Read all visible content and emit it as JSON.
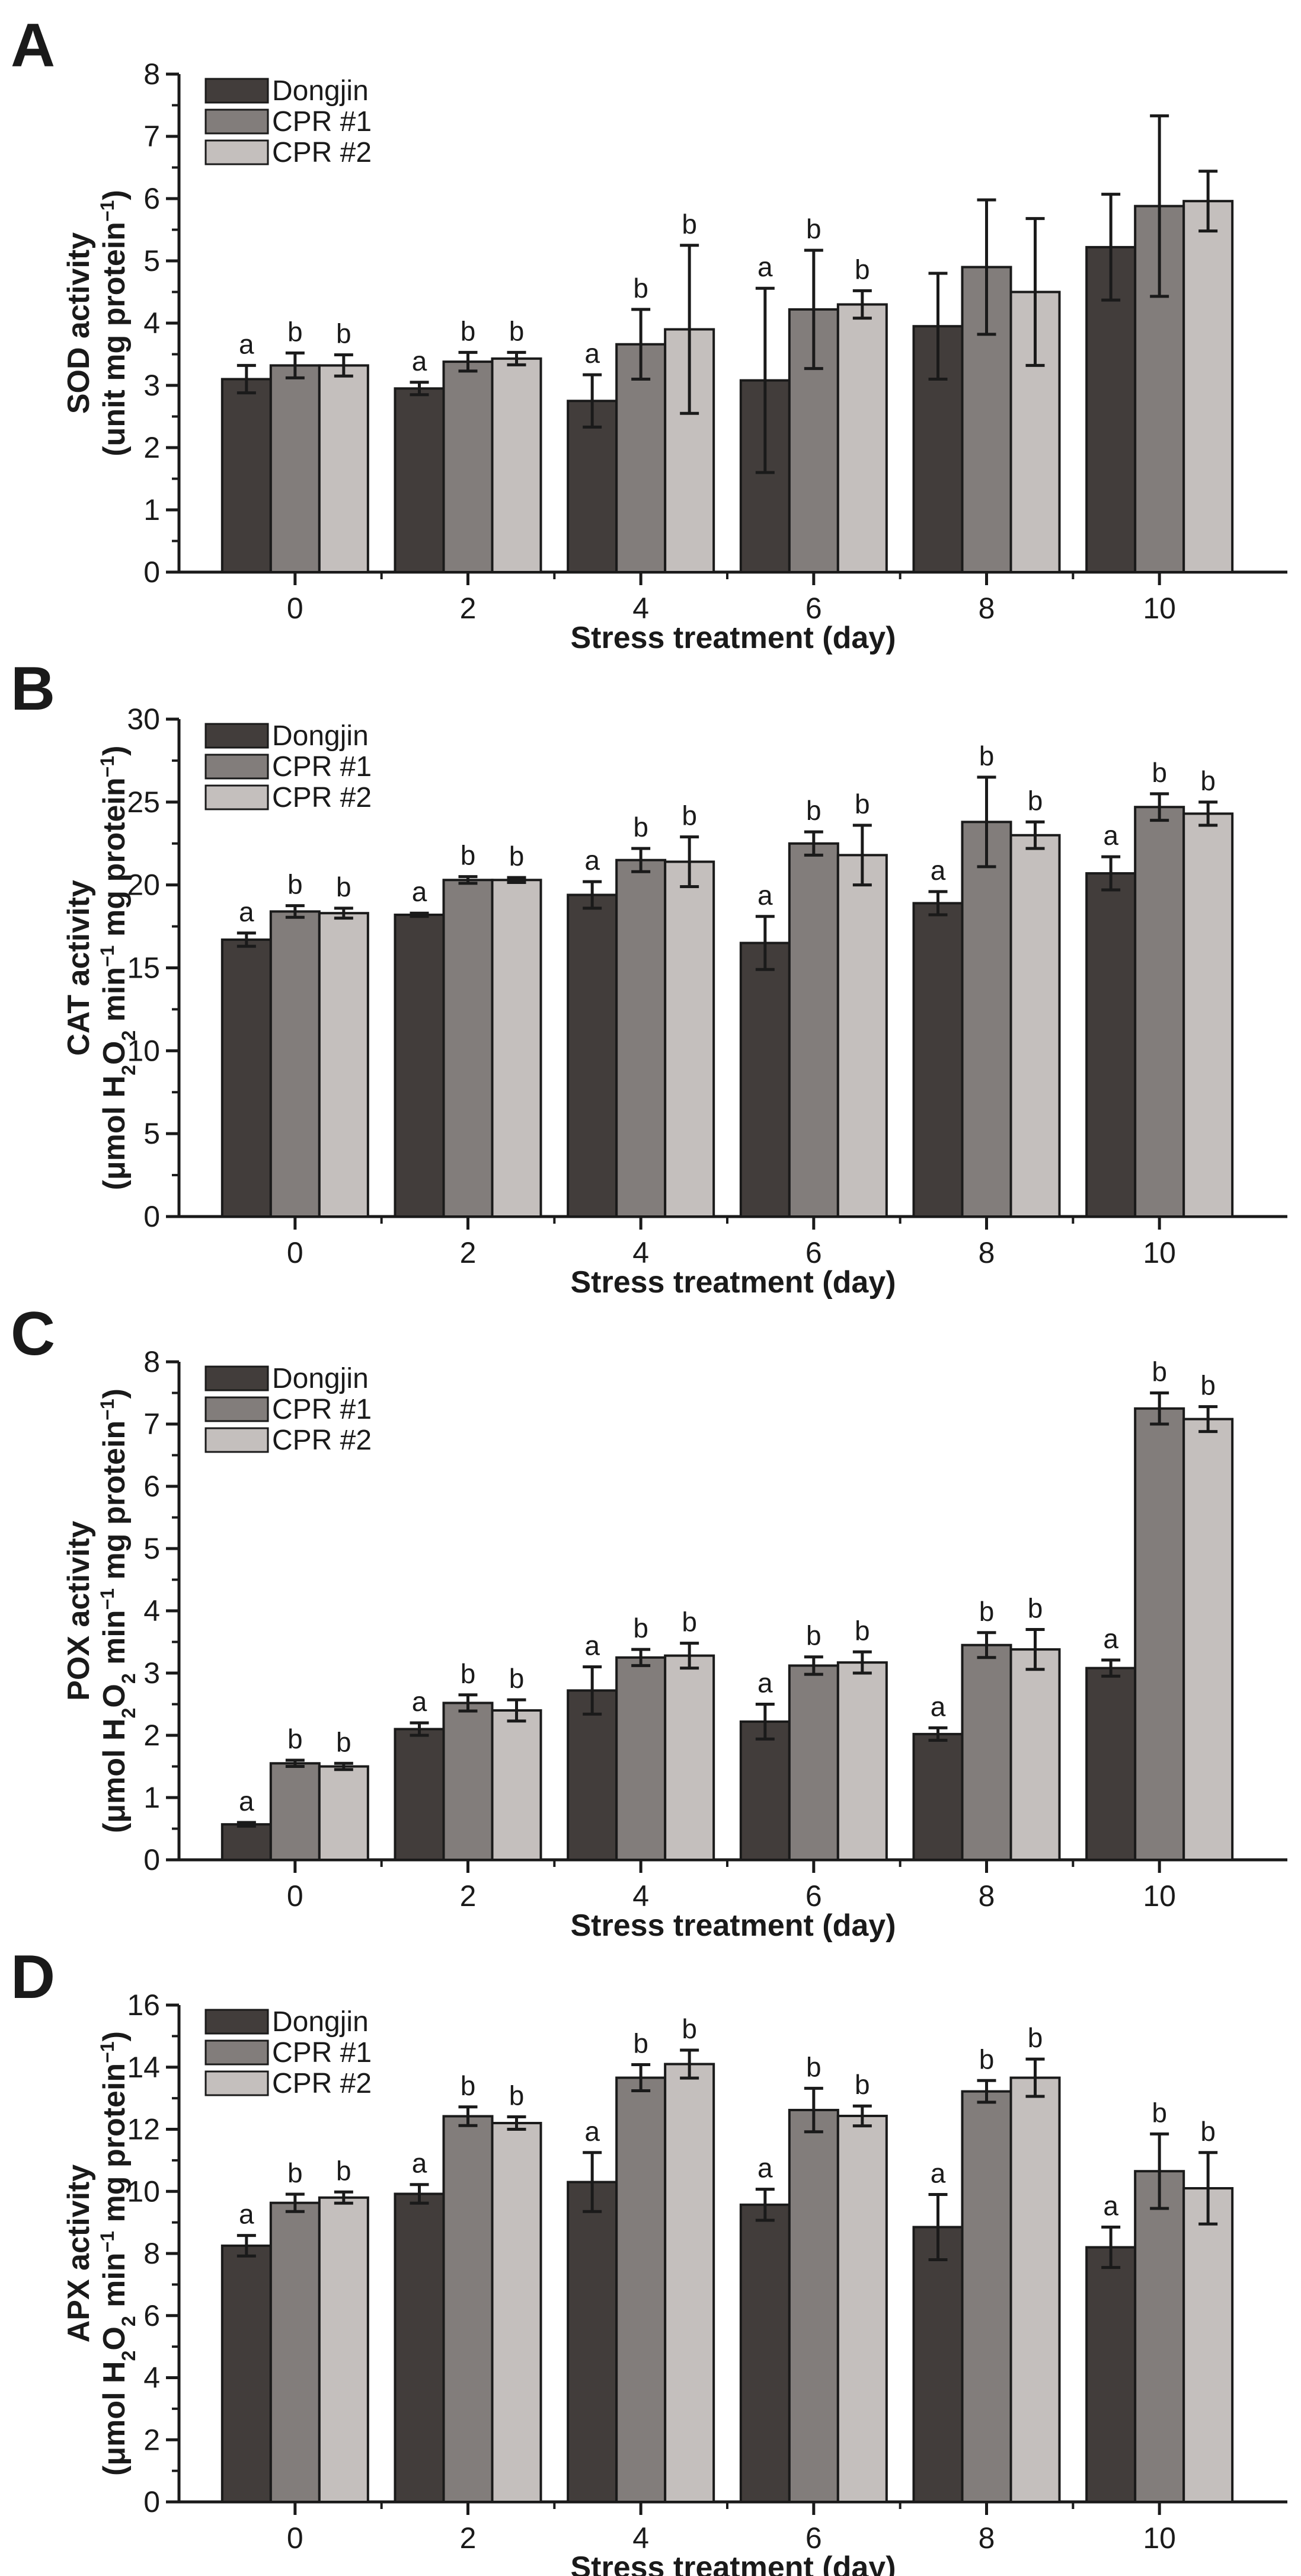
{
  "colors": {
    "Dongjin": "#423d3b",
    "CPR #1": "#827d7b",
    "CPR #2": "#c4bfbd",
    "axis": "#1a1a1a"
  },
  "chart_data": [
    {
      "type": "bar",
      "panel": "A",
      "categories": [
        "0",
        "2",
        "4",
        "6",
        "8",
        "10"
      ],
      "xlabel": "Stress treatment (day)",
      "ylabel_line1": "SOD activity",
      "ylabel_line2": "(unit mg protein",
      "ylabel_line2_sup": "−1",
      "ylabel_line2_end": ")",
      "ylim": [
        0,
        8
      ],
      "yticks": [
        "0",
        "1",
        "2",
        "3",
        "4",
        "5",
        "6",
        "7",
        "8"
      ],
      "series": [
        {
          "name": "Dongjin",
          "values": [
            3.1,
            2.95,
            2.75,
            3.08,
            3.95,
            5.22
          ],
          "errors": [
            0.22,
            0.1,
            0.42,
            1.48,
            0.85,
            0.85
          ],
          "sig": [
            "a",
            "a",
            "a",
            "a",
            "",
            ""
          ]
        },
        {
          "name": "CPR #1",
          "values": [
            3.32,
            3.38,
            3.66,
            4.22,
            4.9,
            5.88
          ],
          "errors": [
            0.2,
            0.15,
            0.56,
            0.95,
            1.08,
            1.45
          ],
          "sig": [
            "b",
            "b",
            "b",
            "b",
            "",
            ""
          ]
        },
        {
          "name": "CPR #2",
          "values": [
            3.32,
            3.43,
            3.9,
            4.3,
            4.5,
            5.96
          ],
          "errors": [
            0.17,
            0.1,
            1.35,
            0.22,
            1.18,
            0.48
          ],
          "sig": [
            "b",
            "b",
            "b",
            "b",
            "",
            ""
          ]
        }
      ]
    },
    {
      "type": "bar",
      "panel": "B",
      "categories": [
        "0",
        "2",
        "4",
        "6",
        "8",
        "10"
      ],
      "xlabel": "Stress treatment (day)",
      "ylabel_line1": "CAT activity",
      "ylabel_line2": "(μmol H",
      "ylabel_line2_sub": "2",
      "ylabel_line2_mid": "O",
      "ylabel_line2_sub2": "2",
      "ylabel_line2_rest": " min",
      "ylabel_line2_sup": "−1",
      "ylabel_line2_end": " mg protein",
      "ylabel_line2_sup2": "−1",
      "ylabel_line2_close": ")",
      "ylim": [
        0,
        30
      ],
      "yticks": [
        "0",
        "5",
        "10",
        "15",
        "20",
        "25",
        "30"
      ],
      "series": [
        {
          "name": "Dongjin",
          "values": [
            16.7,
            18.2,
            19.4,
            16.5,
            18.9,
            20.7
          ],
          "errors": [
            0.4,
            0.1,
            0.8,
            1.6,
            0.7,
            1.0
          ],
          "sig": [
            "a",
            "a",
            "a",
            "a",
            "a",
            "a"
          ]
        },
        {
          "name": "CPR #1",
          "values": [
            18.4,
            20.3,
            21.5,
            22.5,
            23.8,
            24.7
          ],
          "errors": [
            0.35,
            0.2,
            0.7,
            0.7,
            2.7,
            0.8
          ],
          "sig": [
            "b",
            "b",
            "b",
            "b",
            "b",
            "b"
          ]
        },
        {
          "name": "CPR #2",
          "values": [
            18.3,
            20.3,
            21.4,
            21.8,
            23.0,
            24.3
          ],
          "errors": [
            0.3,
            0.15,
            1.5,
            1.8,
            0.8,
            0.7
          ],
          "sig": [
            "b",
            "b",
            "b",
            "b",
            "b",
            "b"
          ]
        }
      ]
    },
    {
      "type": "bar",
      "panel": "C",
      "categories": [
        "0",
        "2",
        "4",
        "6",
        "8",
        "10"
      ],
      "xlabel": "Stress treatment (day)",
      "ylabel_line1": "POX activity",
      "ylabel_line2": "(μmol H",
      "ylabel_line2_sub": "2",
      "ylabel_line2_mid": "O",
      "ylabel_line2_sub2": "2",
      "ylabel_line2_rest": " min",
      "ylabel_line2_sup": "−1",
      "ylabel_line2_end": " mg protein",
      "ylabel_line2_sup2": "−1",
      "ylabel_line2_close": ")",
      "ylim": [
        0,
        8
      ],
      "yticks": [
        "0",
        "1",
        "2",
        "3",
        "4",
        "5",
        "6",
        "7",
        "8"
      ],
      "series": [
        {
          "name": "Dongjin",
          "values": [
            0.57,
            2.1,
            2.72,
            2.22,
            2.02,
            3.08
          ],
          "errors": [
            0.03,
            0.1,
            0.38,
            0.28,
            0.1,
            0.13
          ],
          "sig": [
            "a",
            "a",
            "a",
            "a",
            "a",
            "a"
          ]
        },
        {
          "name": "CPR #1",
          "values": [
            1.55,
            2.52,
            3.25,
            3.12,
            3.45,
            7.25
          ],
          "errors": [
            0.05,
            0.13,
            0.13,
            0.14,
            0.2,
            0.25
          ],
          "sig": [
            "b",
            "b",
            "b",
            "b",
            "b",
            "b"
          ]
        },
        {
          "name": "CPR #2",
          "values": [
            1.5,
            2.4,
            3.28,
            3.17,
            3.38,
            7.08
          ],
          "errors": [
            0.05,
            0.17,
            0.2,
            0.17,
            0.32,
            0.2
          ],
          "sig": [
            "b",
            "b",
            "b",
            "b",
            "b",
            "b"
          ]
        }
      ]
    },
    {
      "type": "bar",
      "panel": "D",
      "categories": [
        "0",
        "2",
        "4",
        "6",
        "8",
        "10"
      ],
      "xlabel": "Stress treatment (day)",
      "ylabel_line1": "APX activity",
      "ylabel_line2": "(μmol H",
      "ylabel_line2_sub": "2",
      "ylabel_line2_mid": "O",
      "ylabel_line2_sub2": "2",
      "ylabel_line2_rest": " min",
      "ylabel_line2_sup": "−1",
      "ylabel_line2_end": " mg protein",
      "ylabel_line2_sup2": "−1",
      "ylabel_line2_close": ")",
      "ylim": [
        0,
        16
      ],
      "yticks": [
        "0",
        "2",
        "4",
        "6",
        "8",
        "10",
        "12",
        "14",
        "16"
      ],
      "series": [
        {
          "name": "Dongjin",
          "values": [
            8.25,
            9.92,
            10.3,
            9.57,
            8.85,
            8.2
          ],
          "errors": [
            0.33,
            0.3,
            0.95,
            0.5,
            1.05,
            0.65
          ],
          "sig": [
            "a",
            "a",
            "a",
            "a",
            "a",
            "a"
          ]
        },
        {
          "name": "CPR #1",
          "values": [
            9.63,
            12.42,
            13.66,
            12.62,
            13.22,
            10.65
          ],
          "errors": [
            0.28,
            0.3,
            0.42,
            0.7,
            0.35,
            1.2
          ],
          "sig": [
            "b",
            "b",
            "b",
            "b",
            "b",
            "b"
          ]
        },
        {
          "name": "CPR #2",
          "values": [
            9.8,
            12.2,
            14.1,
            12.43,
            13.66,
            10.1
          ],
          "errors": [
            0.18,
            0.2,
            0.45,
            0.32,
            0.6,
            1.15
          ],
          "sig": [
            "b",
            "b",
            "b",
            "b",
            "b",
            "b"
          ]
        }
      ]
    }
  ]
}
